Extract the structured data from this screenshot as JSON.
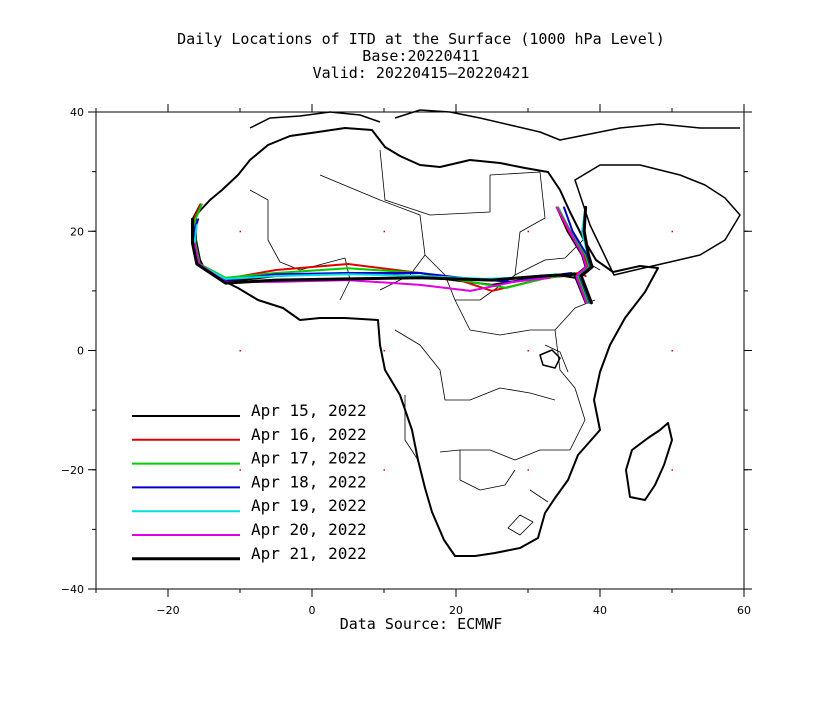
{
  "title": {
    "line1": "Daily Locations of ITD at the Surface (1000 hPa Level)",
    "line2": "Base:20220411",
    "line3": "Valid: 20220415—20220421"
  },
  "source": "Data Source: ECMWF",
  "map_extent": {
    "lon": [
      -30,
      60
    ],
    "lat": [
      -40,
      40
    ]
  },
  "x_ticks": [
    {
      "value": -20,
      "label": "−20"
    },
    {
      "value": 0,
      "label": "0"
    },
    {
      "value": 20,
      "label": "20"
    },
    {
      "value": 40,
      "label": "40"
    },
    {
      "value": 60,
      "label": "60"
    }
  ],
  "y_ticks": [
    {
      "value": 40,
      "label": "40"
    },
    {
      "value": 20,
      "label": "20"
    },
    {
      "value": 0,
      "label": "0"
    },
    {
      "value": -20,
      "label": "−20"
    },
    {
      "value": -40,
      "label": "−40"
    }
  ],
  "legend": [
    {
      "label": "Apr 15, 2022",
      "color": "#000000"
    },
    {
      "label": "Apr 16, 2022",
      "color": "#e00000"
    },
    {
      "label": "Apr 17, 2022",
      "color": "#00cc00"
    },
    {
      "label": "Apr 18, 2022",
      "color": "#0000cc"
    },
    {
      "label": "Apr 19, 2022",
      "color": "#00e0e0"
    },
    {
      "label": "Apr 20, 2022",
      "color": "#e000e0"
    },
    {
      "label": "Apr 21, 2022",
      "color": "#000000"
    }
  ],
  "chart_data": {
    "type": "line",
    "xlim": [
      -30,
      60
    ],
    "ylim": [
      -40,
      40
    ],
    "series": [
      {
        "name": "Apr 15, 2022",
        "color": "#000000",
        "west": [
          [
            -15.5,
            24.5
          ],
          [
            -16.6,
            22
          ],
          [
            -16.6,
            18
          ],
          [
            -16,
            14.5
          ],
          [
            -12,
            11.5
          ],
          [
            -5,
            12.5
          ],
          [
            5,
            13
          ],
          [
            15,
            12.5
          ],
          [
            25,
            11
          ],
          [
            30,
            12
          ],
          [
            35,
            12.5
          ],
          [
            37.5,
            12
          ]
        ],
        "east": [
          [
            34,
            24
          ],
          [
            35.5,
            20
          ],
          [
            37.5,
            16
          ],
          [
            38,
            14
          ],
          [
            36.5,
            12.5
          ],
          [
            38,
            8
          ]
        ]
      },
      {
        "name": "Apr 16, 2022",
        "color": "#e00000",
        "west": [
          [
            -15.5,
            24.5
          ],
          [
            -16.4,
            22
          ],
          [
            -16.4,
            18
          ],
          [
            -15.8,
            14.5
          ],
          [
            -12,
            12
          ],
          [
            -5,
            13.5
          ],
          [
            5,
            14.5
          ],
          [
            15,
            13
          ],
          [
            20,
            12
          ],
          [
            25,
            10
          ],
          [
            32,
            12
          ],
          [
            37,
            13
          ],
          [
            38,
            12.5
          ]
        ],
        "east": [
          [
            34,
            24
          ],
          [
            35.7,
            20
          ],
          [
            37.8,
            16
          ],
          [
            38.3,
            14
          ],
          [
            36.8,
            12.5
          ],
          [
            38.2,
            8
          ]
        ]
      },
      {
        "name": "Apr 17, 2022",
        "color": "#00cc00",
        "west": [
          [
            -15.3,
            24.5
          ],
          [
            -16.2,
            22
          ],
          [
            -16.2,
            18
          ],
          [
            -15.6,
            14.5
          ],
          [
            -12,
            12.2
          ],
          [
            -5,
            13
          ],
          [
            5,
            13.8
          ],
          [
            15,
            13
          ],
          [
            22,
            11.5
          ],
          [
            27,
            10.5
          ],
          [
            32,
            12
          ],
          [
            36.5,
            13
          ]
        ],
        "east": [
          [
            34.2,
            24
          ],
          [
            35.9,
            20
          ],
          [
            38,
            16
          ],
          [
            38.5,
            14
          ],
          [
            37,
            12.5
          ],
          [
            38.4,
            8
          ]
        ]
      },
      {
        "name": "Apr 18, 2022",
        "color": "#0000cc",
        "west": [
          [
            -15.8,
            22
          ],
          [
            -16.4,
            20
          ],
          [
            -16.4,
            18
          ],
          [
            -15.9,
            14.5
          ],
          [
            -12,
            11.8
          ],
          [
            -5,
            12.8
          ],
          [
            5,
            13
          ],
          [
            15,
            13
          ],
          [
            22,
            12
          ],
          [
            28,
            11.5
          ],
          [
            33,
            12.5
          ],
          [
            36,
            13
          ]
        ],
        "east": [
          [
            35,
            24
          ],
          [
            36.2,
            20
          ],
          [
            38.2,
            16
          ],
          [
            38.7,
            14
          ],
          [
            37.2,
            12.5
          ],
          [
            38.6,
            8
          ]
        ]
      },
      {
        "name": "Apr 19, 2022",
        "color": "#00e0e0",
        "west": [
          [
            -16,
            21
          ],
          [
            -16.3,
            18
          ],
          [
            -15.8,
            14.5
          ],
          [
            -12,
            12
          ],
          [
            -5,
            12.5
          ],
          [
            5,
            12.8
          ],
          [
            15,
            12.5
          ],
          [
            24,
            12
          ],
          [
            30,
            12.3
          ],
          [
            34,
            12.8
          ]
        ],
        "east": [
          [
            38,
            24
          ],
          [
            37.5,
            20
          ],
          [
            38.3,
            16
          ],
          [
            38.8,
            14
          ],
          [
            37.3,
            12.5
          ],
          [
            38.7,
            8
          ]
        ]
      },
      {
        "name": "Apr 20, 2022",
        "color": "#e000e0",
        "west": [
          [
            -16.3,
            18
          ],
          [
            -15.7,
            14.5
          ],
          [
            -12,
            11.5
          ],
          [
            -5,
            11.5
          ],
          [
            5,
            11.8
          ],
          [
            15,
            11
          ],
          [
            22,
            10
          ],
          [
            28,
            11.5
          ],
          [
            33,
            12.2
          ]
        ],
        "east": [
          [
            34,
            24
          ],
          [
            35.8,
            20
          ],
          [
            37.6,
            16
          ],
          [
            38.1,
            14
          ],
          [
            36.7,
            12.5
          ],
          [
            38.1,
            8
          ]
        ]
      },
      {
        "name": "Apr 21, 2022",
        "color": "#000000",
        "west": [
          [
            -16.6,
            22
          ],
          [
            -16.6,
            18
          ],
          [
            -16,
            14.5
          ],
          [
            -12,
            11.3
          ],
          [
            -5,
            11.8
          ],
          [
            5,
            12
          ],
          [
            15,
            12.2
          ],
          [
            25,
            11.8
          ],
          [
            32,
            12.5
          ],
          [
            36.5,
            12.8
          ]
        ],
        "east": [
          [
            38,
            24
          ],
          [
            37.8,
            20
          ],
          [
            38.4,
            16
          ],
          [
            38.9,
            14
          ],
          [
            37.4,
            12.5
          ],
          [
            38.8,
            8
          ]
        ]
      }
    ]
  }
}
